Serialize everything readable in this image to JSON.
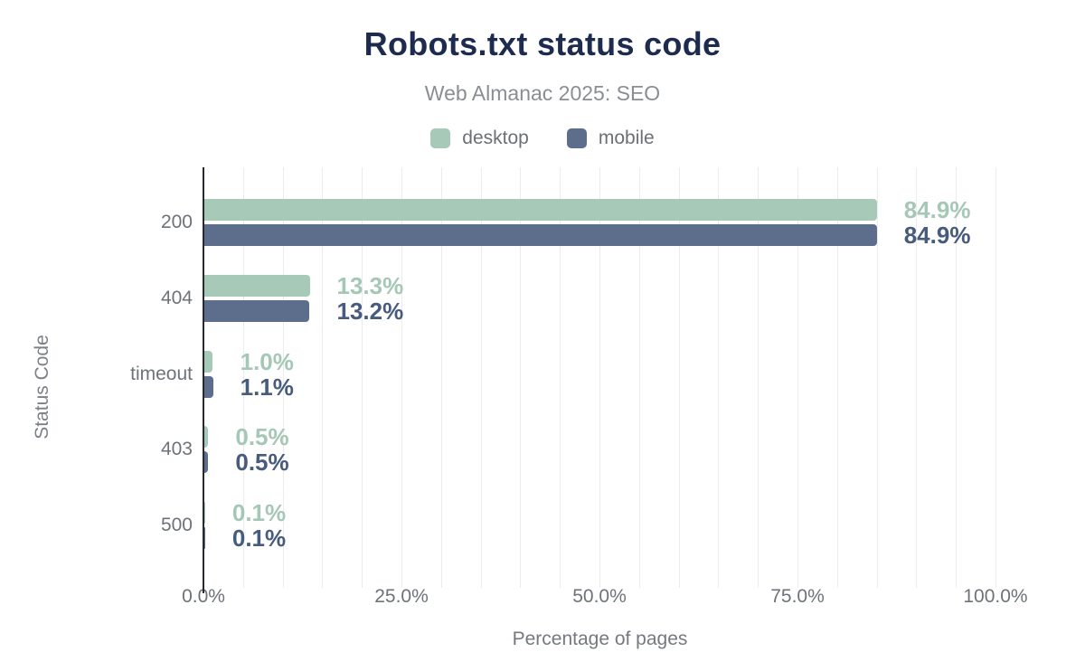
{
  "title": "Robots.txt status code",
  "subtitle": "Web Almanac 2025: SEO",
  "legend": {
    "items": [
      {
        "label": "desktop",
        "color": "#a7c9b8"
      },
      {
        "label": "mobile",
        "color": "#5d6e8c"
      }
    ]
  },
  "chart_data": {
    "type": "bar",
    "orientation": "horizontal",
    "title": "Robots.txt status code",
    "subtitle": "Web Almanac 2025: SEO",
    "categories": [
      "200",
      "404",
      "timeout",
      "403",
      "500"
    ],
    "series": [
      {
        "name": "desktop",
        "color": "#a7c9b8",
        "label_color": "#a5c8b6",
        "values": [
          84.9,
          13.3,
          1.0,
          0.5,
          0.1
        ],
        "labels": [
          "84.9%",
          "13.3%",
          "1.0%",
          "0.5%",
          "0.1%"
        ]
      },
      {
        "name": "mobile",
        "color": "#5d6e8c",
        "label_color": "#475b7d",
        "values": [
          84.9,
          13.2,
          1.1,
          0.5,
          0.1
        ],
        "labels": [
          "84.9%",
          "13.2%",
          "1.1%",
          "0.5%",
          "0.1%"
        ]
      }
    ],
    "xlabel": "Percentage of pages",
    "ylabel": "Status Code",
    "xlim": [
      0,
      100
    ],
    "xticks": [
      {
        "value": 0,
        "label": "0.0%"
      },
      {
        "value": 25,
        "label": "25.0%"
      },
      {
        "value": 50,
        "label": "50.0%"
      },
      {
        "value": 75,
        "label": "75.0%"
      },
      {
        "value": 100,
        "label": "100.0%"
      }
    ],
    "grid": {
      "vertical_minor_step": 5,
      "color": "#ececec"
    },
    "legend_position": "top"
  },
  "colors": {
    "title": "#1d2b4f",
    "subtitle": "#8a8e94",
    "axis_line": "#26292e",
    "tick_text": "#6e7279"
  }
}
